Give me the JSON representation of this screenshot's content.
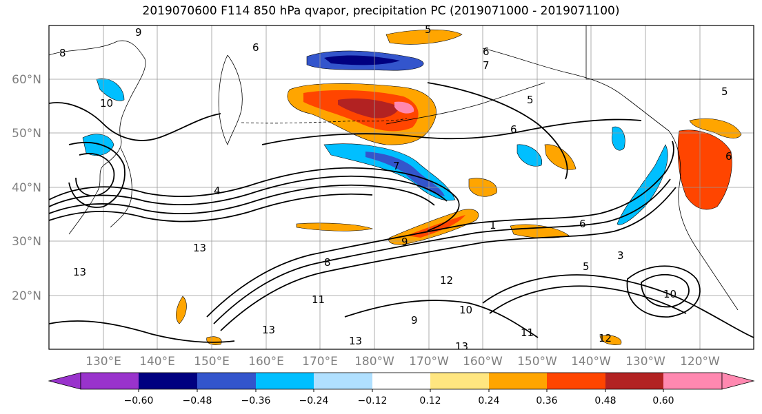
{
  "title": "2019070600 F114 850 hPa qvapor, precipitation PC (2019071000 - 2019071100)",
  "map": {
    "lat_labels": [
      "60°N",
      "50°N",
      "40°N",
      "30°N",
      "20°N"
    ],
    "lon_labels": [
      "130°E",
      "140°E",
      "150°E",
      "160°E",
      "170°E",
      "180°W",
      "170°W",
      "160°W",
      "150°W",
      "140°W",
      "130°W",
      "120°W"
    ],
    "contour_labels": [
      "9",
      "8",
      "6",
      "5",
      "7",
      "6",
      "10",
      "5",
      "6",
      "7",
      "4",
      "13",
      "13",
      "12",
      "9",
      "11",
      "13",
      "10",
      "13",
      "6",
      "11",
      "10",
      "12",
      "13",
      "5",
      "6",
      "3",
      "1",
      "8",
      "9",
      "5"
    ]
  },
  "colorbar": {
    "ticks": [
      "−0.60",
      "−0.48",
      "−0.36",
      "−0.24",
      "−0.12",
      "0.12",
      "0.24",
      "0.36",
      "0.48",
      "0.60"
    ],
    "colors": [
      "#9933cc",
      "#000080",
      "#3355cc",
      "#00bfff",
      "#b0e0ff",
      "#ffffff",
      "#ffe680",
      "#ffa500",
      "#ff4500",
      "#b22222",
      "#ff88b0"
    ]
  },
  "colors": {
    "frame": "#000000",
    "grid": "#999999",
    "label_gray": "#7f7f7f"
  }
}
